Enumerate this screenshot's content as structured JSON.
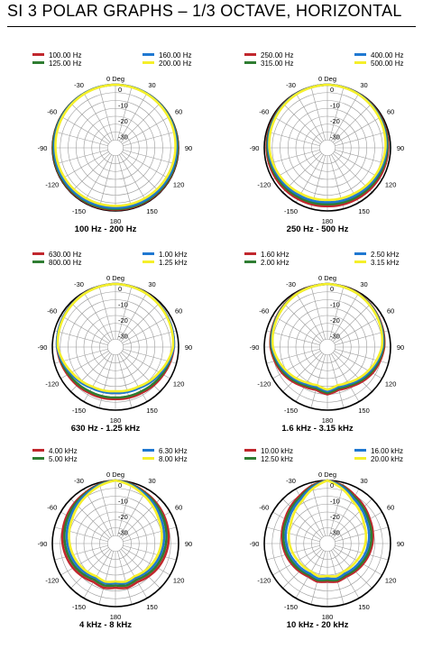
{
  "page_title": "SI 3 POLAR GRAPHS – 1/3 OCTAVE, HORIZONTAL",
  "ring_labels": [
    "0",
    "-10",
    "-20",
    "-30"
  ],
  "top_angle_label": "0 Deg",
  "angle_labels": [
    "30",
    "-30",
    "60",
    "-60",
    "90",
    "-90",
    "120",
    "-120",
    "150",
    "-150",
    "180"
  ],
  "colors": {
    "red": "#c1272d",
    "green": "#2f7d32",
    "blue": "#1f78d1",
    "yellow": "#f5ef2a"
  },
  "chart_data": [
    {
      "type": "polar",
      "title": "100 Hz - 200 Hz",
      "rlim": [
        -40,
        0
      ],
      "ring_step_db": 5,
      "series": [
        {
          "name": "100.00 Hz",
          "color": "red",
          "angles": [
            0,
            30,
            60,
            90,
            120,
            150,
            180
          ],
          "values": [
            0,
            -0.2,
            -0.4,
            -0.5,
            -0.6,
            -0.7,
            -0.8
          ]
        },
        {
          "name": "125.00 Hz",
          "color": "green",
          "angles": [
            0,
            30,
            60,
            90,
            120,
            150,
            180
          ],
          "values": [
            0,
            -0.2,
            -0.5,
            -0.7,
            -0.9,
            -1.1,
            -1.2
          ]
        },
        {
          "name": "160.00 Hz",
          "color": "blue",
          "angles": [
            0,
            30,
            60,
            90,
            120,
            150,
            180
          ],
          "values": [
            0,
            -0.3,
            -0.8,
            -1.2,
            -1.5,
            -1.8,
            -2
          ]
        },
        {
          "name": "200.00 Hz",
          "color": "yellow",
          "angles": [
            0,
            30,
            60,
            90,
            120,
            150,
            180
          ],
          "values": [
            0,
            -0.5,
            -1.2,
            -2,
            -2.6,
            -3,
            -3.2
          ]
        }
      ]
    },
    {
      "type": "polar",
      "title": "250 Hz - 500 Hz",
      "rlim": [
        -40,
        0
      ],
      "ring_step_db": 5,
      "series": [
        {
          "name": "250.00 Hz",
          "color": "red",
          "angles": [
            0,
            30,
            60,
            90,
            120,
            150,
            180
          ],
          "values": [
            0,
            -0.4,
            -1,
            -1.5,
            -2,
            -2.6,
            -3
          ]
        },
        {
          "name": "315.00 Hz",
          "color": "green",
          "angles": [
            0,
            30,
            60,
            90,
            120,
            150,
            180
          ],
          "values": [
            0,
            -0.5,
            -1.3,
            -2,
            -3,
            -3.8,
            -4.2
          ]
        },
        {
          "name": "400.00 Hz",
          "color": "blue",
          "angles": [
            0,
            30,
            60,
            90,
            120,
            150,
            180
          ],
          "values": [
            0,
            -0.6,
            -1.6,
            -2.6,
            -4,
            -5,
            -5.5
          ]
        },
        {
          "name": "500.00 Hz",
          "color": "yellow",
          "angles": [
            0,
            30,
            60,
            90,
            120,
            150,
            180
          ],
          "values": [
            0,
            -0.8,
            -2,
            -3.2,
            -5,
            -6.5,
            -7
          ]
        }
      ]
    },
    {
      "type": "polar",
      "title": "630 Hz - 1.25 kHz",
      "rlim": [
        -40,
        0
      ],
      "ring_step_db": 5,
      "series": [
        {
          "name": "630.00 Hz",
          "color": "red",
          "angles": [
            0,
            30,
            60,
            90,
            120,
            150,
            180
          ],
          "values": [
            0,
            -0.6,
            -1.8,
            -3,
            -5,
            -6.5,
            -7
          ]
        },
        {
          "name": "800.00 Hz",
          "color": "green",
          "angles": [
            0,
            30,
            60,
            90,
            120,
            150,
            180
          ],
          "values": [
            0,
            -0.7,
            -2,
            -3.3,
            -5.8,
            -7.5,
            -8
          ]
        },
        {
          "name": "1.00 kHz",
          "color": "blue",
          "angles": [
            0,
            30,
            60,
            90,
            120,
            150,
            180
          ],
          "values": [
            0,
            -0.8,
            -1.8,
            -3,
            -7,
            -10,
            -11
          ]
        },
        {
          "name": "1.25 kHz",
          "color": "yellow",
          "angles": [
            0,
            30,
            60,
            90,
            120,
            150,
            180
          ],
          "values": [
            0,
            -0.9,
            -2.2,
            -3.5,
            -8,
            -11,
            -12
          ]
        }
      ]
    },
    {
      "type": "polar",
      "title": "1.6 kHz - 3.15 kHz",
      "rlim": [
        -40,
        0
      ],
      "ring_step_db": 5,
      "series": [
        {
          "name": "1.60 kHz",
          "color": "red",
          "angles": [
            0,
            30,
            60,
            90,
            120,
            150,
            165,
            180
          ],
          "values": [
            0,
            -0.8,
            -2.5,
            -4,
            -7,
            -11,
            -12,
            -10
          ]
        },
        {
          "name": "2.00 kHz",
          "color": "green",
          "angles": [
            0,
            30,
            60,
            90,
            120,
            150,
            165,
            180
          ],
          "values": [
            0,
            -1,
            -2.8,
            -4.5,
            -8,
            -12,
            -13,
            -11
          ]
        },
        {
          "name": "2.50 kHz",
          "color": "blue",
          "angles": [
            0,
            30,
            60,
            90,
            120,
            150,
            165,
            180
          ],
          "values": [
            0,
            -1.1,
            -3,
            -5,
            -9,
            -13,
            -14,
            -12
          ]
        },
        {
          "name": "3.15 kHz",
          "color": "yellow",
          "angles": [
            0,
            30,
            60,
            90,
            120,
            150,
            165,
            180
          ],
          "values": [
            0,
            -1.2,
            -3.3,
            -5.5,
            -10,
            -14,
            -15,
            -13
          ]
        }
      ]
    },
    {
      "type": "polar",
      "title": "4 kHz - 8 kHz",
      "rlim": [
        -40,
        0
      ],
      "ring_step_db": 5,
      "series": [
        {
          "name": "4.00 kHz",
          "color": "red",
          "angles": [
            0,
            15,
            30,
            60,
            90,
            120,
            150,
            165,
            180
          ],
          "values": [
            0,
            -1,
            -2.5,
            -4.5,
            -6.5,
            -9,
            -12,
            -11,
            -12
          ]
        },
        {
          "name": "5.00 kHz",
          "color": "green",
          "angles": [
            0,
            15,
            30,
            60,
            90,
            120,
            150,
            165,
            180
          ],
          "values": [
            0,
            -1.2,
            -3,
            -5.5,
            -8,
            -10.5,
            -13.5,
            -12.5,
            -13.5
          ]
        },
        {
          "name": "6.30 kHz",
          "color": "blue",
          "angles": [
            0,
            15,
            30,
            60,
            90,
            120,
            150,
            165,
            180
          ],
          "values": [
            0,
            -1.5,
            -3.5,
            -7,
            -9.5,
            -12,
            -15,
            -14,
            -15
          ]
        },
        {
          "name": "8.00 kHz",
          "color": "yellow",
          "angles": [
            0,
            15,
            30,
            60,
            90,
            120,
            150,
            165,
            180
          ],
          "values": [
            0,
            -2,
            -4.5,
            -8.5,
            -11,
            -13.5,
            -16,
            -15,
            -16
          ]
        }
      ]
    },
    {
      "type": "polar",
      "title": "10 kHz - 20 kHz",
      "rlim": [
        -40,
        0
      ],
      "ring_step_db": 5,
      "series": [
        {
          "name": "10.00 kHz",
          "color": "red",
          "angles": [
            0,
            15,
            30,
            60,
            90,
            120,
            150,
            165,
            180
          ],
          "values": [
            0,
            -2,
            -5,
            -9,
            -11.5,
            -14,
            -16,
            -15,
            -16
          ]
        },
        {
          "name": "12.50 kHz",
          "color": "green",
          "angles": [
            0,
            15,
            30,
            60,
            90,
            120,
            150,
            165,
            180
          ],
          "values": [
            0,
            -2.5,
            -6,
            -10,
            -12.5,
            -15,
            -17,
            -16,
            -17
          ]
        },
        {
          "name": "16.00 kHz",
          "color": "blue",
          "angles": [
            0,
            15,
            30,
            60,
            90,
            120,
            150,
            165,
            180
          ],
          "values": [
            0,
            -3,
            -7,
            -11.5,
            -14,
            -16.5,
            -18,
            -17,
            -18
          ]
        },
        {
          "name": "20.00 kHz",
          "color": "yellow",
          "angles": [
            0,
            15,
            30,
            60,
            90,
            120,
            150,
            165,
            180
          ],
          "values": [
            0,
            -4,
            -8.5,
            -13.5,
            -16,
            -18.5,
            -19.5,
            -18.5,
            -19.5
          ]
        }
      ]
    }
  ]
}
